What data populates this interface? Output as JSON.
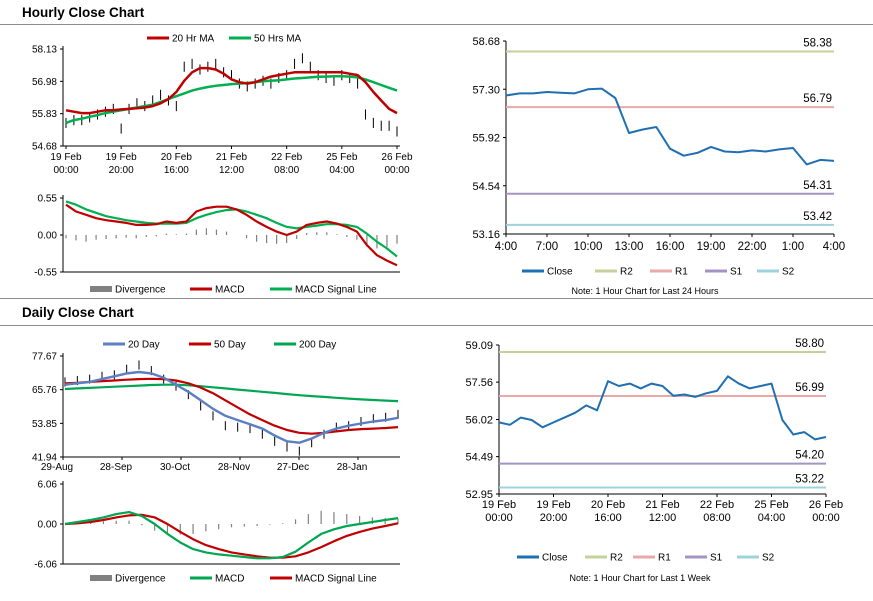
{
  "titles": {
    "hourly": "Hourly Close Chart",
    "daily": "Daily Close Chart"
  },
  "colors": {
    "ma20_hourly": "#c00000",
    "ma50_hourly": "#00b050",
    "ma20_daily": "#5b7fc2",
    "ma50_daily": "#c00000",
    "ma200_daily": "#00a651",
    "price": "#000000",
    "divergence": "#808080",
    "macd_hourly": "#c00000",
    "signal_hourly": "#00b050",
    "macd_daily": "#00a651",
    "signal_daily": "#c00000",
    "close": "#1f6fb2",
    "r2": "#c5d09a",
    "r1": "#eaa8a8",
    "s1": "#a493c4",
    "s2": "#9fd3dc"
  },
  "chart_data": [
    {
      "id": "hourly_price",
      "type": "line",
      "title": "",
      "legend": [
        "20 Hr MA",
        "50 Hrs MA"
      ],
      "ylim": [
        54.68,
        58.13
      ],
      "yticks": [
        "58.13",
        "56.98",
        "55.83",
        "54.68"
      ],
      "xticks": [
        [
          "19 Feb",
          "00:00"
        ],
        [
          "19 Feb",
          "20:00"
        ],
        [
          "20 Feb",
          "16:00"
        ],
        [
          "21 Feb",
          "12:00"
        ],
        [
          "22 Feb",
          "08:00"
        ],
        [
          "25 Feb",
          "04:00"
        ],
        [
          "26 Feb",
          "00:00"
        ]
      ],
      "price": [
        55.5,
        55.6,
        55.6,
        55.7,
        55.8,
        55.9,
        56.0,
        55.3,
        56.0,
        56.2,
        56.1,
        56.3,
        56.5,
        56.3,
        56.1,
        57.5,
        57.6,
        57.4,
        57.5,
        57.6,
        57.3,
        57.2,
        56.9,
        56.8,
        56.9,
        57.0,
        56.9,
        57.1,
        57.2,
        57.6,
        57.8,
        57.5,
        57.2,
        57.1,
        57.0,
        57.2,
        57.1,
        56.9,
        55.8,
        55.5,
        55.4,
        55.4,
        55.2
      ],
      "ma20": [
        55.95,
        55.9,
        55.85,
        55.85,
        55.9,
        55.95,
        55.95,
        55.98,
        56.0,
        56.02,
        56.05,
        56.1,
        56.2,
        56.35,
        56.6,
        57.0,
        57.3,
        57.45,
        57.45,
        57.4,
        57.25,
        57.05,
        56.95,
        56.9,
        56.95,
        57.05,
        57.15,
        57.2,
        57.25,
        57.3,
        57.3,
        57.3,
        57.3,
        57.3,
        57.3,
        57.3,
        57.25,
        57.2,
        56.95,
        56.6,
        56.3,
        56.0,
        55.85
      ],
      "ma50": [
        55.5,
        55.6,
        55.65,
        55.72,
        55.78,
        55.85,
        55.9,
        55.95,
        56.0,
        56.05,
        56.1,
        56.15,
        56.25,
        56.35,
        56.45,
        56.55,
        56.65,
        56.72,
        56.78,
        56.82,
        56.85,
        56.88,
        56.9,
        56.92,
        56.95,
        56.98,
        57.0,
        57.02,
        57.05,
        57.08,
        57.1,
        57.12,
        57.14,
        57.15,
        57.16,
        57.16,
        57.15,
        57.12,
        57.05,
        56.95,
        56.85,
        56.75,
        56.65
      ]
    },
    {
      "id": "hourly_macd",
      "type": "bar",
      "title": "",
      "legend": [
        "Divergence",
        "MACD",
        "MACD Signal Line"
      ],
      "ylim": [
        -0.55,
        0.55
      ],
      "yticks": [
        "0.55",
        "0.00",
        "-0.55"
      ],
      "macd": [
        0.45,
        0.35,
        0.3,
        0.25,
        0.22,
        0.2,
        0.18,
        0.15,
        0.15,
        0.16,
        0.2,
        0.18,
        0.2,
        0.35,
        0.4,
        0.42,
        0.42,
        0.38,
        0.3,
        0.2,
        0.12,
        0.05,
        0.0,
        0.05,
        0.15,
        0.18,
        0.2,
        0.17,
        0.12,
        0.05,
        -0.15,
        -0.3,
        -0.38,
        -0.45
      ],
      "signal": [
        0.5,
        0.45,
        0.38,
        0.33,
        0.28,
        0.25,
        0.22,
        0.2,
        0.18,
        0.17,
        0.17,
        0.17,
        0.18,
        0.25,
        0.3,
        0.34,
        0.37,
        0.38,
        0.35,
        0.3,
        0.25,
        0.18,
        0.12,
        0.1,
        0.12,
        0.14,
        0.16,
        0.16,
        0.15,
        0.12,
        0.02,
        -0.1,
        -0.2,
        -0.32
      ],
      "divergence": [
        -0.05,
        -0.08,
        -0.1,
        -0.07,
        -0.06,
        -0.05,
        -0.04,
        -0.05,
        -0.03,
        -0.02,
        0.02,
        0.01,
        0.02,
        0.08,
        0.1,
        0.08,
        0.05,
        0.0,
        -0.05,
        -0.1,
        -0.12,
        -0.13,
        -0.12,
        -0.06,
        0.03,
        0.04,
        0.04,
        0.01,
        -0.03,
        -0.07,
        -0.17,
        -0.2,
        -0.18,
        -0.13
      ]
    },
    {
      "id": "hourly_close_24h",
      "type": "line",
      "title": "",
      "legend": [
        "Close",
        "R2",
        "R1",
        "S1",
        "S2"
      ],
      "ylim": [
        53.16,
        58.68
      ],
      "yticks": [
        "58.68",
        "57.30",
        "55.92",
        "54.54",
        "53.16"
      ],
      "xticks": [
        "4:00",
        "7:00",
        "10:00",
        "13:00",
        "16:00",
        "19:00",
        "22:00",
        "1:00",
        "4:00"
      ],
      "x": [
        4,
        5,
        6,
        7,
        8,
        9,
        10,
        11,
        12,
        13,
        14,
        15,
        16,
        17,
        18,
        19,
        20,
        21,
        22,
        23,
        24,
        25,
        26,
        27,
        28
      ],
      "close": [
        57.12,
        57.18,
        57.18,
        57.22,
        57.2,
        57.18,
        57.3,
        57.32,
        57.05,
        56.05,
        56.15,
        56.22,
        55.6,
        55.4,
        55.48,
        55.65,
        55.52,
        55.5,
        55.55,
        55.52,
        55.58,
        55.62,
        55.15,
        55.28,
        55.25
      ],
      "levels": {
        "R2": 58.38,
        "R1": 56.79,
        "S1": 54.31,
        "S2": 53.42
      },
      "level_labels": {
        "R2": "58.38",
        "R1": "56.79",
        "S1": "54.31",
        "S2": "53.42"
      },
      "note": "Note: 1 Hour Chart for Last 24 Hours"
    },
    {
      "id": "daily_price",
      "type": "line",
      "title": "",
      "legend": [
        "20 Day",
        "50 Day",
        "200 Day"
      ],
      "ylim": [
        41.94,
        77.67
      ],
      "yticks": [
        "77.67",
        "65.76",
        "53.85",
        "41.94"
      ],
      "xticks": [
        "29-Aug",
        "28-Sep",
        "30-Oct",
        "28-Nov",
        "27-Dec",
        "28-Jan"
      ],
      "price": [
        68.5,
        69.0,
        69.5,
        70.5,
        71.0,
        73.0,
        74.5,
        72.5,
        69.5,
        67.0,
        64.0,
        60.0,
        56.5,
        53.0,
        52.5,
        52.0,
        50.0,
        47.5,
        45.5,
        44.0,
        47.0,
        50.0,
        52.5,
        53.0,
        54.5,
        55.5,
        56.0,
        57.0
      ],
      "ma20": [
        67.5,
        68.0,
        68.5,
        69.5,
        70.5,
        71.5,
        72.0,
        71.5,
        70.0,
        67.5,
        65.0,
        62.0,
        59.0,
        56.5,
        55.0,
        53.5,
        52.0,
        49.5,
        47.5,
        47.0,
        48.5,
        50.5,
        52.0,
        53.0,
        53.8,
        54.5,
        55.0,
        55.8
      ],
      "ma50": [
        68.0,
        68.2,
        68.5,
        68.8,
        69.0,
        69.3,
        69.5,
        69.6,
        69.5,
        69.0,
        68.0,
        66.5,
        64.5,
        62.0,
        59.5,
        57.0,
        55.0,
        53.0,
        51.5,
        50.5,
        50.2,
        50.5,
        51.0,
        51.5,
        51.8,
        52.0,
        52.2,
        52.5
      ],
      "ma200": [
        66.0,
        66.2,
        66.4,
        66.6,
        66.8,
        67.0,
        67.2,
        67.4,
        67.5,
        67.5,
        67.3,
        67.0,
        66.6,
        66.2,
        65.8,
        65.4,
        65.0,
        64.6,
        64.2,
        63.8,
        63.5,
        63.2,
        62.9,
        62.6,
        62.3,
        62.1,
        61.9,
        61.7
      ]
    },
    {
      "id": "daily_macd",
      "type": "bar",
      "title": "",
      "legend": [
        "Divergence",
        "MACD",
        "MACD Signal Line"
      ],
      "ylim": [
        -6.06,
        6.06
      ],
      "yticks": [
        "6.06",
        "0.00",
        "-6.06"
      ],
      "macd": [
        0.0,
        0.3,
        0.6,
        1.0,
        1.5,
        1.8,
        1.2,
        0.0,
        -1.5,
        -2.8,
        -3.8,
        -4.3,
        -4.6,
        -4.8,
        -5.0,
        -5.2,
        -5.2,
        -5.0,
        -4.2,
        -2.8,
        -1.5,
        -0.8,
        -0.3,
        0.0,
        0.3,
        0.6,
        0.9
      ],
      "signal": [
        0.0,
        0.1,
        0.3,
        0.6,
        1.0,
        1.3,
        1.4,
        1.0,
        0.0,
        -1.2,
        -2.3,
        -3.2,
        -3.8,
        -4.3,
        -4.6,
        -4.9,
        -5.1,
        -5.1,
        -4.9,
        -4.3,
        -3.5,
        -2.6,
        -1.8,
        -1.2,
        -0.7,
        -0.3,
        0.1
      ],
      "divergence": [
        0.0,
        0.2,
        0.3,
        0.4,
        0.5,
        0.5,
        -0.2,
        -1.0,
        -1.5,
        -1.6,
        -1.5,
        -1.1,
        -0.8,
        -0.5,
        -0.4,
        -0.3,
        -0.1,
        0.1,
        0.7,
        1.5,
        2.0,
        1.8,
        1.5,
        1.2,
        1.0,
        0.9,
        0.8
      ]
    },
    {
      "id": "hourly_close_week",
      "type": "line",
      "title": "",
      "legend": [
        "Close",
        "R2",
        "R1",
        "S1",
        "S2"
      ],
      "ylim": [
        52.95,
        59.09
      ],
      "yticks": [
        "59.09",
        "57.56",
        "56.02",
        "54.49",
        "52.95"
      ],
      "xticks": [
        [
          "19 Feb",
          "00:00"
        ],
        [
          "19 Feb",
          "20:00"
        ],
        [
          "20 Feb",
          "16:00"
        ],
        [
          "21 Feb",
          "12:00"
        ],
        [
          "22 Feb",
          "08:00"
        ],
        [
          "25 Feb",
          "04:00"
        ],
        [
          "26 Feb",
          "00:00"
        ]
      ],
      "close": [
        55.9,
        55.8,
        56.1,
        56.0,
        55.7,
        55.9,
        56.1,
        56.3,
        56.6,
        56.4,
        57.6,
        57.4,
        57.5,
        57.3,
        57.5,
        57.4,
        57.0,
        57.05,
        56.95,
        57.1,
        57.2,
        57.8,
        57.5,
        57.3,
        57.4,
        57.5,
        56.0,
        55.4,
        55.5,
        55.2,
        55.3
      ],
      "levels": {
        "R2": 58.8,
        "R1": 56.99,
        "S1": 54.2,
        "S2": 53.22
      },
      "level_labels": {
        "R2": "58.80",
        "R1": "56.99",
        "S1": "54.20",
        "S2": "53.22"
      },
      "note": "Note: 1 Hour Chart for Last 1 Week"
    }
  ]
}
